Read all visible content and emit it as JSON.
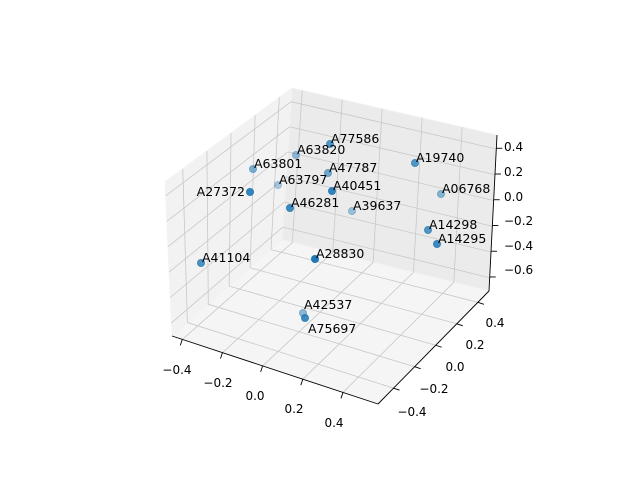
{
  "chart_data": {
    "type": "scatter",
    "projection": "3d",
    "title": "",
    "xlabel": "",
    "ylabel": "",
    "zlabel": "",
    "x_ticks": [
      "−0.4",
      "−0.2",
      "0.0",
      "0.2",
      "0.4"
    ],
    "y_ticks": [
      "−0.4",
      "−0.2",
      "0.0",
      "0.2",
      "0.4"
    ],
    "z_ticks": [
      "−0.6",
      "−0.4",
      "−0.2",
      "0.0",
      "0.2",
      "0.4"
    ],
    "grid": true,
    "marker_color": "#1f77b4",
    "points": [
      {
        "label": "A77586"
      },
      {
        "label": "A63820"
      },
      {
        "label": "A63801"
      },
      {
        "label": "A47787"
      },
      {
        "label": "A63797"
      },
      {
        "label": "A27372"
      },
      {
        "label": "A40451"
      },
      {
        "label": "A46281"
      },
      {
        "label": "A39637"
      },
      {
        "label": "A19740"
      },
      {
        "label": "A06768"
      },
      {
        "label": "A14298"
      },
      {
        "label": "A14295"
      },
      {
        "label": "A41104"
      },
      {
        "label": "A28830"
      },
      {
        "label": "A42537"
      },
      {
        "label": "A75697"
      }
    ]
  }
}
